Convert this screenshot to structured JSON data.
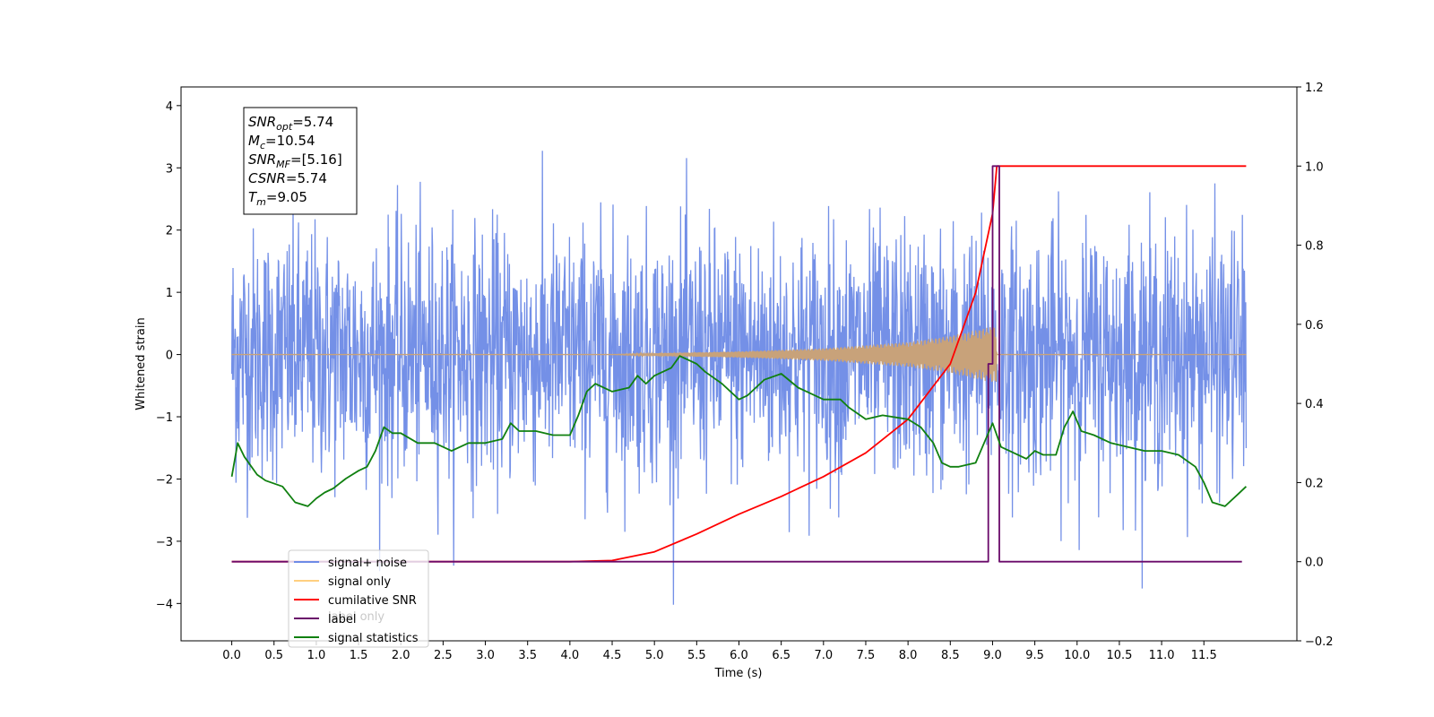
{
  "chart_data": {
    "type": "line",
    "xlabel": "Time (s)",
    "ylabel": "Whitened strain",
    "xlim": [
      -0.6,
      12.6
    ],
    "ylim": [
      -4.6,
      4.3
    ],
    "y2lim": [
      -0.2,
      1.2
    ],
    "xticks": [
      "0.0",
      "0.5",
      "1.0",
      "1.5",
      "2.0",
      "2.5",
      "3.0",
      "3.5",
      "4.0",
      "4.5",
      "5.0",
      "5.5",
      "6.0",
      "6.5",
      "7.0",
      "7.5",
      "8.0",
      "8.5",
      "9.0",
      "9.5",
      "10.0",
      "10.5",
      "11.0",
      "11.5"
    ],
    "yticks": [
      "4",
      "3",
      "2",
      "1",
      "0",
      "−1",
      "−2",
      "−3",
      "−4"
    ],
    "y2ticks": [
      "1.2",
      "1.0",
      "0.8",
      "0.6",
      "0.4",
      "0.2",
      "0.0",
      "−0.2"
    ],
    "info_box": {
      "lines": [
        {
          "base": "SNR",
          "sub": "opt",
          "rest": "=5.74"
        },
        {
          "base": "M",
          "sub": "c",
          "rest": "=10.54"
        },
        {
          "base": "SNR",
          "sub": "MF",
          "rest": "=[5.16]"
        },
        {
          "base": "CSNR",
          "sub": "",
          "rest": "=5.74"
        },
        {
          "base": "T",
          "sub": "m",
          "rest": "=9.05"
        }
      ]
    },
    "legend": {
      "position": "lower-left",
      "entries": [
        {
          "label": "signal+ noise",
          "color": "#6d8ae6"
        },
        {
          "label": "signal only",
          "color": "#ffcf80"
        },
        {
          "label": "cumilative SNR",
          "color": "#ff0000"
        },
        {
          "label": "label",
          "color": "#6a0a6a"
        },
        {
          "label": "signal statistics",
          "color": "#108010"
        }
      ],
      "hidden_text": "label only"
    },
    "series": [
      {
        "name": "signal+ noise",
        "axis": "left",
        "color": "#6d8ae6",
        "x_range": [
          0.0,
          12.0
        ],
        "noise_sigma": 1.0
      },
      {
        "name": "signal only",
        "axis": "left",
        "color": "#c8a27a",
        "x_range": [
          0.0,
          12.0
        ],
        "envelope": {
          "x": [
            0.0,
            4.5,
            5.0,
            6.0,
            7.0,
            8.0,
            8.5,
            9.0,
            9.05
          ],
          "amp": [
            0.0,
            0.0,
            0.02,
            0.05,
            0.1,
            0.2,
            0.3,
            0.45,
            0.45
          ]
        }
      },
      {
        "name": "cumilative SNR",
        "axis": "right",
        "color": "#ff0000",
        "x": [
          0.0,
          4.0,
          4.5,
          5.0,
          5.5,
          6.0,
          6.5,
          7.0,
          7.5,
          8.0,
          8.5,
          8.8,
          9.0,
          9.05,
          12.0
        ],
        "y": [
          0.0,
          0.0,
          0.003,
          0.025,
          0.07,
          0.12,
          0.165,
          0.215,
          0.275,
          0.36,
          0.5,
          0.68,
          0.88,
          1.0,
          1.0
        ]
      },
      {
        "name": "label",
        "axis": "right",
        "color": "#6a0a6a",
        "x": [
          0.0,
          8.95,
          8.95,
          9.0,
          9.0,
          9.08,
          9.08,
          11.95
        ],
        "y": [
          0.0,
          0.0,
          0.5,
          0.5,
          1.0,
          1.0,
          0.0,
          0.0
        ]
      },
      {
        "name": "signal statistics",
        "axis": "right",
        "color": "#108010",
        "x": [
          0.0,
          0.07,
          0.15,
          0.3,
          0.4,
          0.6,
          0.75,
          0.9,
          1.0,
          1.1,
          1.2,
          1.35,
          1.5,
          1.6,
          1.7,
          1.8,
          1.9,
          2.0,
          2.2,
          2.4,
          2.6,
          2.8,
          3.0,
          3.2,
          3.3,
          3.4,
          3.6,
          3.8,
          4.0,
          4.1,
          4.2,
          4.3,
          4.5,
          4.7,
          4.8,
          4.9,
          5.0,
          5.2,
          5.3,
          5.4,
          5.5,
          5.6,
          5.8,
          6.0,
          6.1,
          6.2,
          6.3,
          6.5,
          6.7,
          6.8,
          6.9,
          7.0,
          7.2,
          7.3,
          7.5,
          7.7,
          8.0,
          8.15,
          8.3,
          8.4,
          8.5,
          8.6,
          8.8,
          8.9,
          9.0,
          9.1,
          9.2,
          9.4,
          9.5,
          9.6,
          9.75,
          9.85,
          9.95,
          10.05,
          10.2,
          10.4,
          10.6,
          10.8,
          11.0,
          11.2,
          11.4,
          11.5,
          11.6,
          11.75,
          11.9,
          12.0
        ],
        "y": [
          0.215,
          0.3,
          0.265,
          0.22,
          0.205,
          0.19,
          0.15,
          0.14,
          0.16,
          0.175,
          0.185,
          0.21,
          0.23,
          0.24,
          0.28,
          0.34,
          0.325,
          0.325,
          0.3,
          0.3,
          0.28,
          0.3,
          0.3,
          0.31,
          0.35,
          0.33,
          0.33,
          0.32,
          0.32,
          0.37,
          0.43,
          0.45,
          0.43,
          0.44,
          0.47,
          0.45,
          0.47,
          0.49,
          0.52,
          0.51,
          0.5,
          0.48,
          0.45,
          0.41,
          0.42,
          0.44,
          0.46,
          0.475,
          0.44,
          0.43,
          0.42,
          0.41,
          0.41,
          0.39,
          0.36,
          0.37,
          0.36,
          0.34,
          0.3,
          0.25,
          0.24,
          0.24,
          0.25,
          0.3,
          0.35,
          0.29,
          0.28,
          0.26,
          0.28,
          0.27,
          0.27,
          0.34,
          0.38,
          0.33,
          0.32,
          0.3,
          0.29,
          0.28,
          0.28,
          0.27,
          0.24,
          0.2,
          0.15,
          0.14,
          0.17,
          0.19
        ]
      }
    ]
  }
}
